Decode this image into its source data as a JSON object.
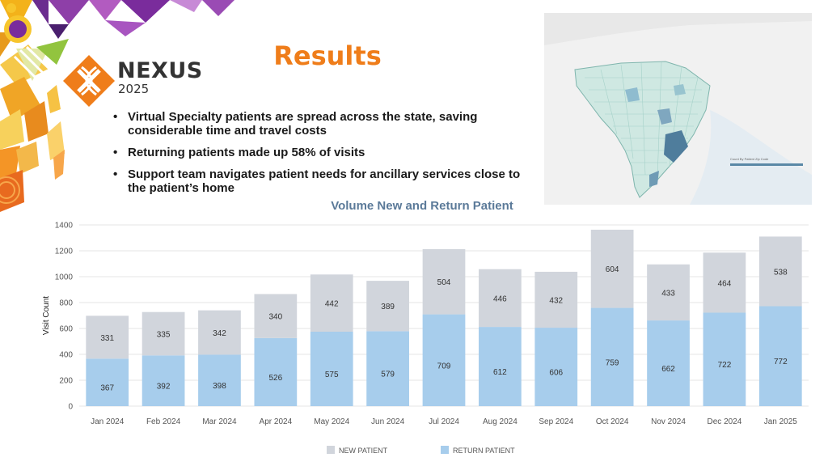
{
  "branding": {
    "logo_text": "NEXUS",
    "logo_year": "2025",
    "accent": "#ef7d1a",
    "logo_purple": "#6b2c8f"
  },
  "slide": {
    "title": "Results",
    "bullets": [
      "Virtual Specialty patients are spread across the state, saving considerable time and travel costs",
      "Returning patients made up 58% of visits",
      "Support team navigates patient needs for ancillary services close to the patient’s home"
    ]
  },
  "map": {
    "legend_title": "Count By Patient Zip Code"
  },
  "chart_data": {
    "type": "bar",
    "stacked": true,
    "title": "Volume New and Return Patient",
    "xlabel": "",
    "ylabel": "Visit Count",
    "ylim": [
      0,
      1400
    ],
    "yticks": [
      0,
      200,
      400,
      600,
      800,
      1000,
      1200,
      1400
    ],
    "grid": true,
    "legend_position": "bottom",
    "categories": [
      "Jan 2024",
      "Feb 2024",
      "Mar 2024",
      "Apr 2024",
      "May 2024",
      "Jun 2024",
      "Jul 2024",
      "Aug 2024",
      "Sep 2024",
      "Oct 2024",
      "Nov 2024",
      "Dec 2024",
      "Jan 2025"
    ],
    "series": [
      {
        "name": "RETURN PATIENT",
        "color": "#a7cdec",
        "values": [
          367,
          392,
          398,
          526,
          575,
          579,
          709,
          612,
          606,
          759,
          662,
          722,
          772
        ]
      },
      {
        "name": "NEW PATIENT",
        "color": "#d1d5dc",
        "values": [
          331,
          335,
          342,
          340,
          442,
          389,
          504,
          446,
          432,
          604,
          433,
          464,
          538
        ]
      }
    ],
    "legend_order": [
      "NEW PATIENT",
      "RETURN PATIENT"
    ]
  }
}
